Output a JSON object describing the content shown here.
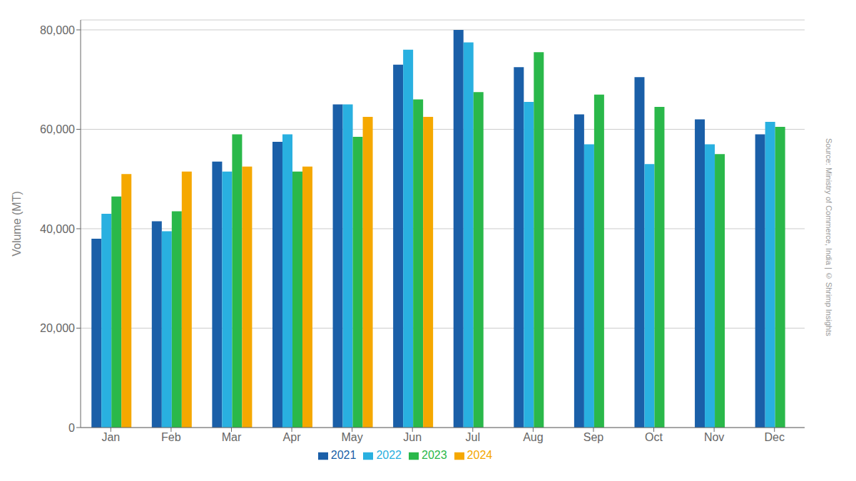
{
  "chart_data": {
    "type": "bar",
    "categories": [
      "Jan",
      "Feb",
      "Mar",
      "Apr",
      "May",
      "Jun",
      "Jul",
      "Aug",
      "Sep",
      "Oct",
      "Nov",
      "Dec"
    ],
    "series": [
      {
        "name": "2021",
        "color": "#1a5fa8",
        "values": [
          38000,
          41500,
          53500,
          57500,
          65000,
          73000,
          80000,
          72500,
          63000,
          70500,
          62000,
          59000
        ]
      },
      {
        "name": "2022",
        "color": "#29b0e0",
        "values": [
          43000,
          39500,
          51500,
          59000,
          65000,
          76000,
          77500,
          65500,
          57000,
          53000,
          57000,
          61500
        ]
      },
      {
        "name": "2023",
        "color": "#2ab84a",
        "values": [
          46500,
          43500,
          59000,
          51500,
          58500,
          66000,
          67500,
          75500,
          67000,
          64500,
          55000,
          60500
        ]
      },
      {
        "name": "2024",
        "color": "#f5a800",
        "values": [
          51000,
          51500,
          52500,
          52500,
          62500,
          62500,
          null,
          null,
          null,
          null,
          null,
          null
        ]
      }
    ],
    "ylabel": "Volume (MT)",
    "ylim": [
      0,
      82000
    ],
    "yticks": [
      0,
      {
        "value": 20000,
        "label": "20,000"
      },
      {
        "value": 40000,
        "label": "40,000"
      },
      {
        "value": 60000,
        "label": "60,000"
      },
      {
        "value": 80000,
        "label": "80,000"
      }
    ],
    "grid": true,
    "legend": "bottom",
    "annotations": [
      "Source: Ministry of Commerce, India | © Shrimp Insights"
    ]
  }
}
